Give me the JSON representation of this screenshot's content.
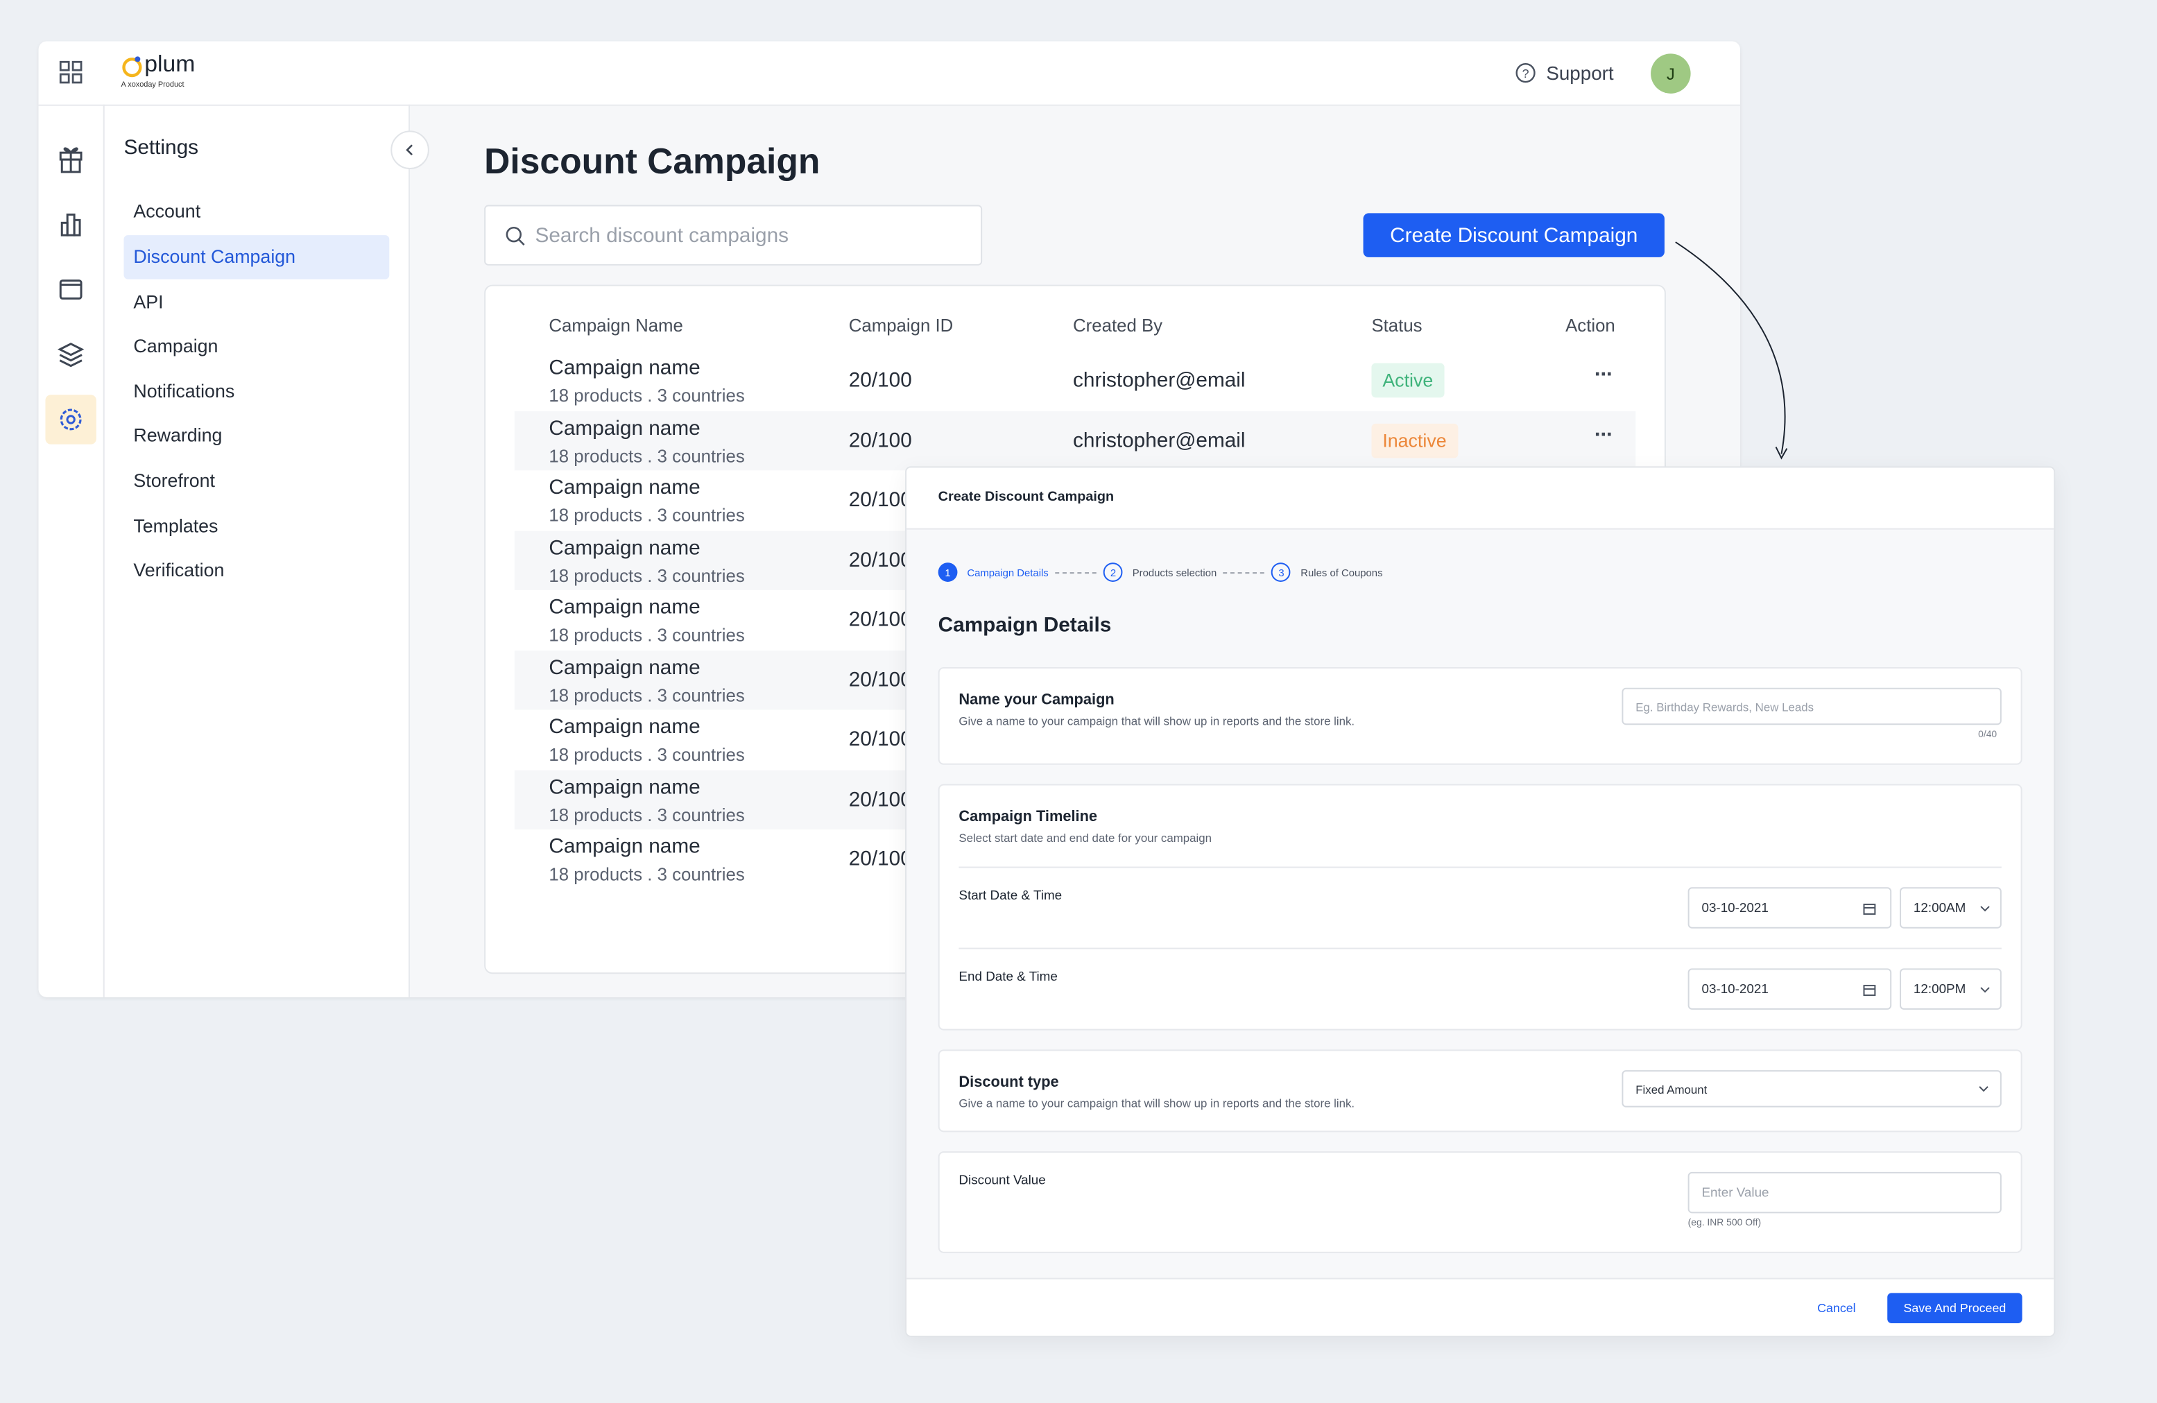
{
  "header": {
    "logo": "plum",
    "logo_tagline": "A xoxoday Product",
    "support": "Support",
    "avatar": "J"
  },
  "settings": {
    "title": "Settings",
    "menu": [
      "Account",
      "Discount Campaign",
      "API",
      "Campaign",
      "Notifications",
      "Rewarding",
      "Storefront",
      "Templates",
      "Verification"
    ],
    "active": 1
  },
  "page": {
    "title": "Discount Campaign",
    "search_placeholder": "Search discount campaigns",
    "create_button": "Create Discount Campaign"
  },
  "table": {
    "columns": [
      "Campaign Name",
      "Campaign ID",
      "Created By",
      "Status",
      "Action"
    ],
    "rows": [
      {
        "name": "Campaign name",
        "detail": "18 products . 3 countries",
        "id": "20/100",
        "created_by": "christopher@email",
        "status": "Active"
      },
      {
        "name": "Campaign name",
        "detail": "18 products . 3 countries",
        "id": "20/100",
        "created_by": "christopher@email",
        "status": "Inactive"
      },
      {
        "name": "Campaign name",
        "detail": "18 products . 3 countries",
        "id": "20/100"
      },
      {
        "name": "Campaign name",
        "detail": "18 products . 3 countries",
        "id": "20/100"
      },
      {
        "name": "Campaign name",
        "detail": "18 products . 3 countries",
        "id": "20/100"
      },
      {
        "name": "Campaign name",
        "detail": "18 products . 3 countries",
        "id": "20/100"
      },
      {
        "name": "Campaign name",
        "detail": "18 products . 3 countries",
        "id": "20/100"
      },
      {
        "name": "Campaign name",
        "detail": "18 products . 3 countries",
        "id": "20/100"
      },
      {
        "name": "Campaign name",
        "detail": "18 products . 3 countries",
        "id": "20/100"
      }
    ]
  },
  "modal": {
    "title": "Create Discount Campaign",
    "steps": [
      {
        "number": "1",
        "label": "Campaign Details"
      },
      {
        "number": "2",
        "label": "Products selection"
      },
      {
        "number": "3",
        "label": "Rules of Coupons"
      }
    ],
    "section_title": "Campaign Details",
    "name_card": {
      "title": "Name your Campaign",
      "description": "Give a name to your campaign that will show up in reports and the store link.",
      "placeholder": "Eg. Birthday Rewards, New Leads",
      "counter": "0/40"
    },
    "timeline_card": {
      "title": "Campaign Timeline",
      "description": "Select start date and end date for your campaign",
      "start_label": "Start Date & Time",
      "start_date": "03-10-2021",
      "start_time": "12:00AM",
      "end_label": "End Date & Time",
      "end_date": "03-10-2021",
      "end_time": "12:00PM"
    },
    "type_card": {
      "title": "Discount type",
      "description": "Give a name to your campaign that will show up in reports and the store link.",
      "selected": "Fixed Amount"
    },
    "value_card": {
      "title": "Discount Value",
      "placeholder": "Enter Value",
      "hint": "(eg. INR 500 Off)"
    },
    "cancel": "Cancel",
    "submit": "Save And Proceed"
  }
}
